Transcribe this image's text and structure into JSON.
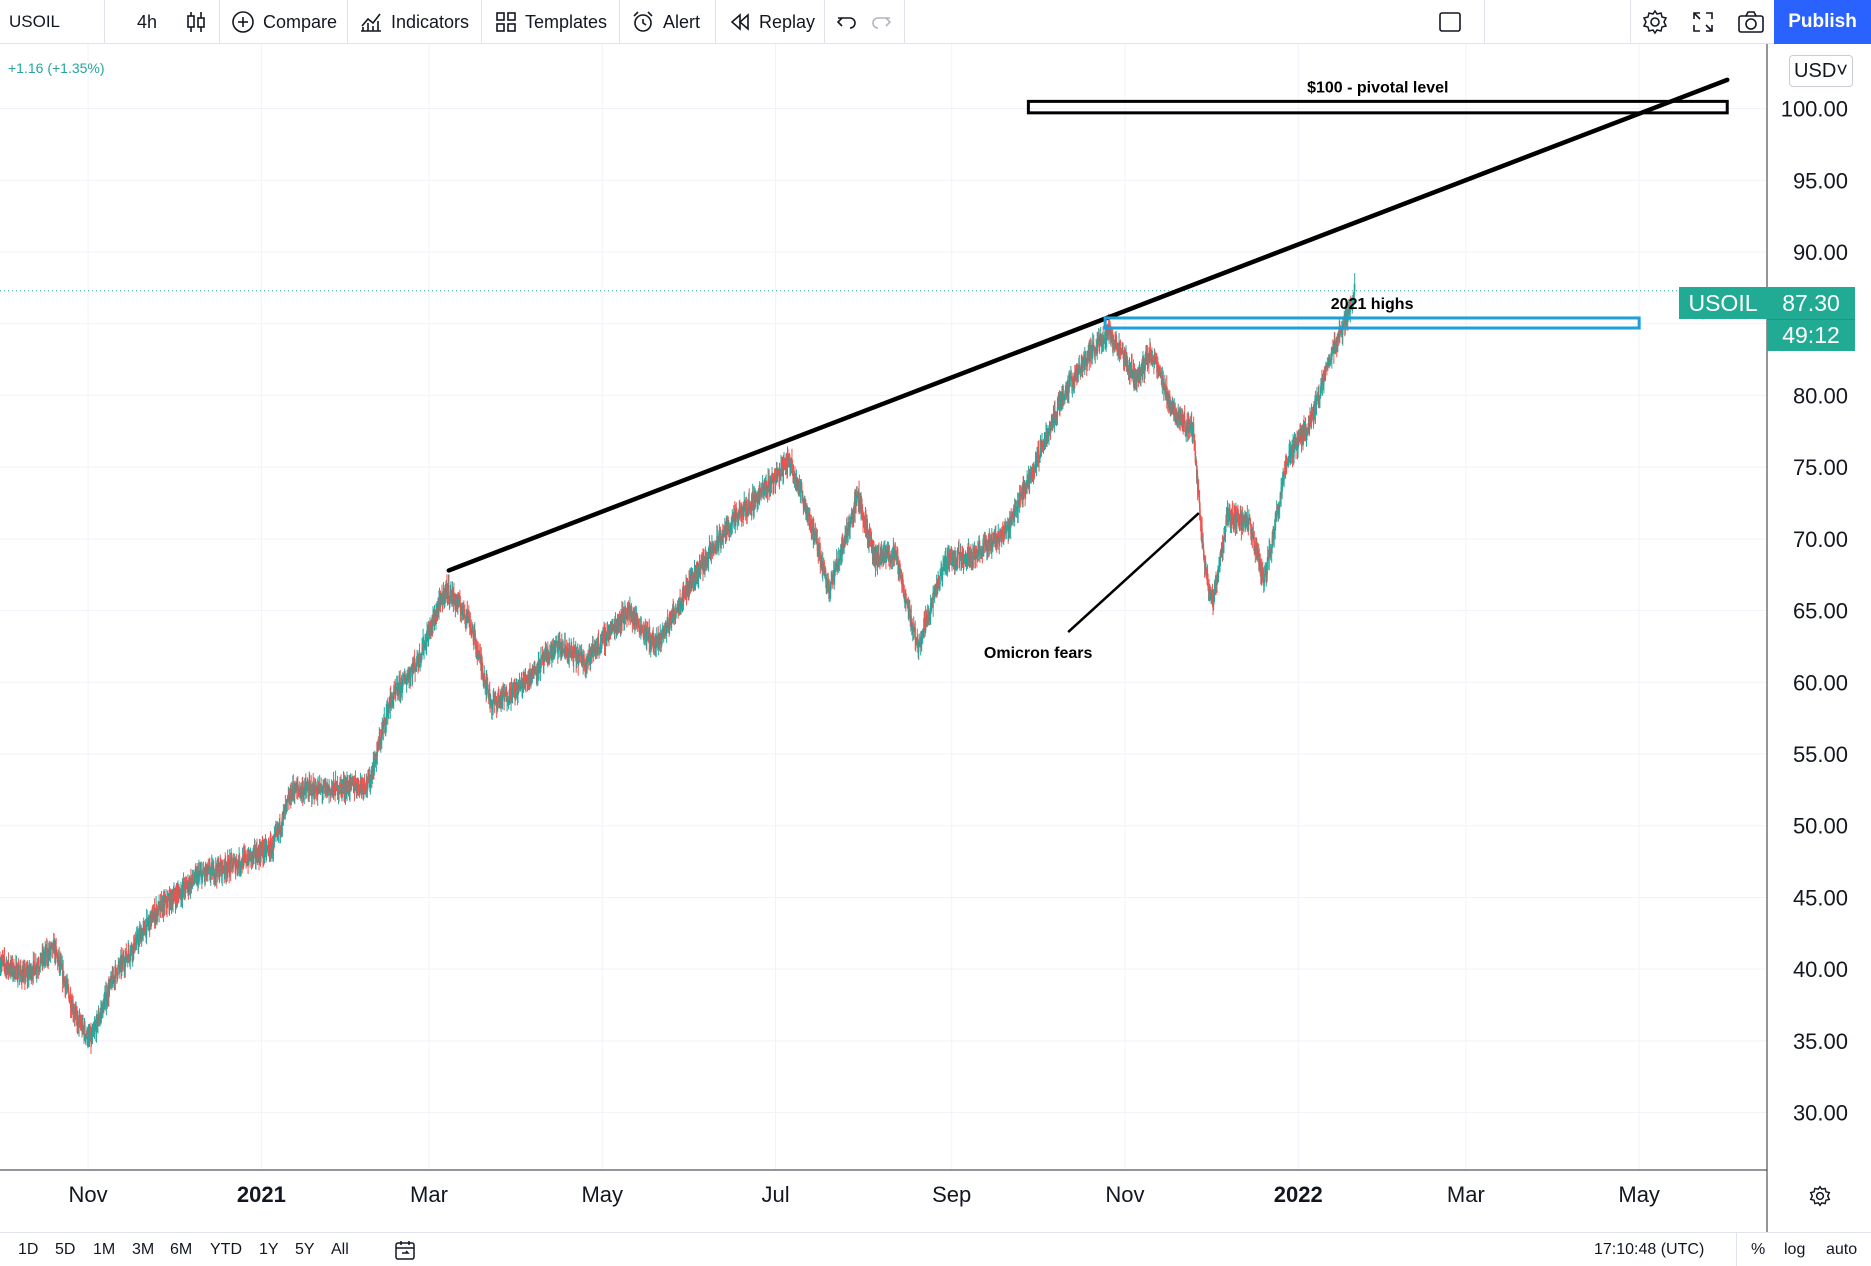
{
  "toolbar": {
    "symbol": "USOIL",
    "interval": "4h",
    "compare_label": "Compare",
    "indicators_label": "Indicators",
    "templates_label": "Templates",
    "alert_label": "Alert",
    "replay_label": "Replay",
    "publish_label": "Publish"
  },
  "legend": {
    "change": "+1.16 (+1.35%)"
  },
  "price_scale": {
    "currency": "USD˅"
  },
  "price_tag": {
    "symbol": "USOIL",
    "price": "87.30",
    "countdown": "49:12"
  },
  "bottom_bar": {
    "ranges": [
      "1D",
      "5D",
      "1M",
      "3M",
      "6M",
      "YTD",
      "1Y",
      "5Y",
      "All"
    ],
    "clock": "17:10:48 (UTC)",
    "percent_label": "%",
    "log_label": "log",
    "auto_label": "auto"
  },
  "colors": {
    "up": "#26a69a",
    "down": "#ef5350",
    "accent": "#2962ff",
    "highlight_box": "#1e9fd8",
    "price_tag": "#22ab94",
    "annotation": "#000000"
  },
  "chart_data": {
    "type": "candlestick",
    "symbol": "USOIL",
    "timeframe": "4h",
    "last_price": 87.3,
    "y_range": [
      26,
      104.5
    ],
    "x_range": [
      "2020-10-01",
      "2022-06-15"
    ],
    "grid": true,
    "y_ticks": [
      "100.00",
      "95.00",
      "90.00",
      "85.00",
      "80.00",
      "75.00",
      "70.00",
      "65.00",
      "60.00",
      "55.00",
      "50.00",
      "45.00",
      "40.00",
      "35.00",
      "30.00"
    ],
    "y_tick_values": [
      100,
      95,
      90,
      85,
      80,
      75,
      70,
      65,
      60,
      55,
      50,
      45,
      40,
      35,
      30
    ],
    "x_ticks": [
      {
        "label": "Nov",
        "date": "2020-11-01",
        "bold": false
      },
      {
        "label": "2021",
        "date": "2021-01-01",
        "bold": true
      },
      {
        "label": "Mar",
        "date": "2021-03-01",
        "bold": false
      },
      {
        "label": "May",
        "date": "2021-05-01",
        "bold": false
      },
      {
        "label": "Jul",
        "date": "2021-07-01",
        "bold": false
      },
      {
        "label": "Sep",
        "date": "2021-09-01",
        "bold": false
      },
      {
        "label": "Nov",
        "date": "2021-11-01",
        "bold": false
      },
      {
        "label": "2022",
        "date": "2022-01-01",
        "bold": true
      },
      {
        "label": "Mar",
        "date": "2022-03-01",
        "bold": false
      },
      {
        "label": "May",
        "date": "2022-05-01",
        "bold": false
      }
    ],
    "price_path": [
      {
        "date": "2020-10-01",
        "price": 40.5
      },
      {
        "date": "2020-10-10",
        "price": 39.5
      },
      {
        "date": "2020-10-20",
        "price": 41.5
      },
      {
        "date": "2020-10-28",
        "price": 36.5
      },
      {
        "date": "2020-11-02",
        "price": 35.0
      },
      {
        "date": "2020-11-10",
        "price": 39.5
      },
      {
        "date": "2020-11-25",
        "price": 44.0
      },
      {
        "date": "2020-12-10",
        "price": 46.5
      },
      {
        "date": "2020-12-25",
        "price": 47.5
      },
      {
        "date": "2021-01-05",
        "price": 48.5
      },
      {
        "date": "2021-01-12",
        "price": 52.5
      },
      {
        "date": "2021-01-25",
        "price": 52.5
      },
      {
        "date": "2021-02-08",
        "price": 53.0
      },
      {
        "date": "2021-02-15",
        "price": 58.5
      },
      {
        "date": "2021-02-25",
        "price": 61.5
      },
      {
        "date": "2021-03-07",
        "price": 66.5
      },
      {
        "date": "2021-03-15",
        "price": 64.5
      },
      {
        "date": "2021-03-23",
        "price": 58.5
      },
      {
        "date": "2021-04-01",
        "price": 59.5
      },
      {
        "date": "2021-04-15",
        "price": 62.5
      },
      {
        "date": "2021-04-25",
        "price": 61.5
      },
      {
        "date": "2021-05-10",
        "price": 65.0
      },
      {
        "date": "2021-05-20",
        "price": 62.5
      },
      {
        "date": "2021-06-01",
        "price": 67.0
      },
      {
        "date": "2021-06-15",
        "price": 71.0
      },
      {
        "date": "2021-06-25",
        "price": 73.0
      },
      {
        "date": "2021-07-06",
        "price": 75.5
      },
      {
        "date": "2021-07-12",
        "price": 72.0
      },
      {
        "date": "2021-07-20",
        "price": 66.5
      },
      {
        "date": "2021-07-30",
        "price": 73.0
      },
      {
        "date": "2021-08-05",
        "price": 68.5
      },
      {
        "date": "2021-08-12",
        "price": 69.0
      },
      {
        "date": "2021-08-20",
        "price": 62.5
      },
      {
        "date": "2021-08-30",
        "price": 68.5
      },
      {
        "date": "2021-09-10",
        "price": 69.0
      },
      {
        "date": "2021-09-20",
        "price": 70.5
      },
      {
        "date": "2021-09-30",
        "price": 75.0
      },
      {
        "date": "2021-10-10",
        "price": 80.0
      },
      {
        "date": "2021-10-20",
        "price": 83.0
      },
      {
        "date": "2021-10-26",
        "price": 84.5
      },
      {
        "date": "2021-11-05",
        "price": 81.0
      },
      {
        "date": "2021-11-10",
        "price": 83.0
      },
      {
        "date": "2021-11-18",
        "price": 79.0
      },
      {
        "date": "2021-11-25",
        "price": 77.5
      },
      {
        "date": "2021-11-29",
        "price": 68.0
      },
      {
        "date": "2021-12-02",
        "price": 65.5
      },
      {
        "date": "2021-12-07",
        "price": 71.5
      },
      {
        "date": "2021-12-15",
        "price": 71.0
      },
      {
        "date": "2021-12-20",
        "price": 67.0
      },
      {
        "date": "2021-12-28",
        "price": 75.5
      },
      {
        "date": "2022-01-05",
        "price": 78.0
      },
      {
        "date": "2022-01-12",
        "price": 82.5
      },
      {
        "date": "2022-01-18",
        "price": 85.5
      },
      {
        "date": "2022-01-21",
        "price": 87.3
      }
    ],
    "trendline": {
      "from": {
        "date": "2021-03-08",
        "price": 67.8
      },
      "to": {
        "date": "2022-06-01",
        "price": 102.0
      }
    },
    "zones": [
      {
        "label": "$100 - pivotal level",
        "from_date": "2021-09-28",
        "to_date": "2022-06-01",
        "top": 100.5,
        "bottom": 99.7,
        "color": "#000000"
      },
      {
        "label": "2021 highs",
        "from_date": "2021-10-25",
        "to_date": "2022-05-01",
        "top": 85.4,
        "bottom": 84.7,
        "color": "#1e9fd8"
      }
    ],
    "annotations": [
      {
        "text": "Omicron fears",
        "arrow_to": {
          "date": "2021-11-27",
          "price": 71.8
        },
        "arrow_from": {
          "date": "2021-10-12",
          "price": 63.5
        }
      }
    ]
  }
}
